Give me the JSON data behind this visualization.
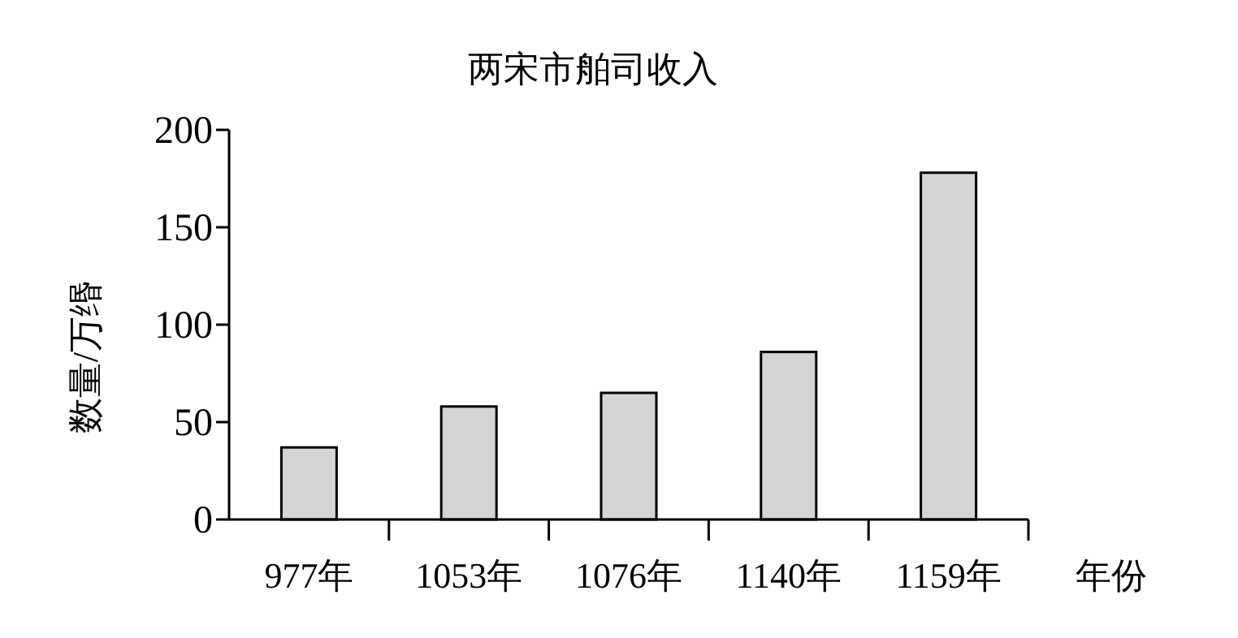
{
  "chart_data": {
    "type": "bar",
    "title": "两宋市舶司收入",
    "xlabel": "年份",
    "ylabel": "数量/万缗",
    "categories": [
      "977年",
      "1053年",
      "1076年",
      "1140年",
      "1159年"
    ],
    "values": [
      37,
      58,
      65,
      86,
      178
    ],
    "color": "#d4d4d4",
    "ylim": [
      0,
      200
    ],
    "yticks": [
      0,
      50,
      100,
      150,
      200
    ],
    "grid": false
  }
}
